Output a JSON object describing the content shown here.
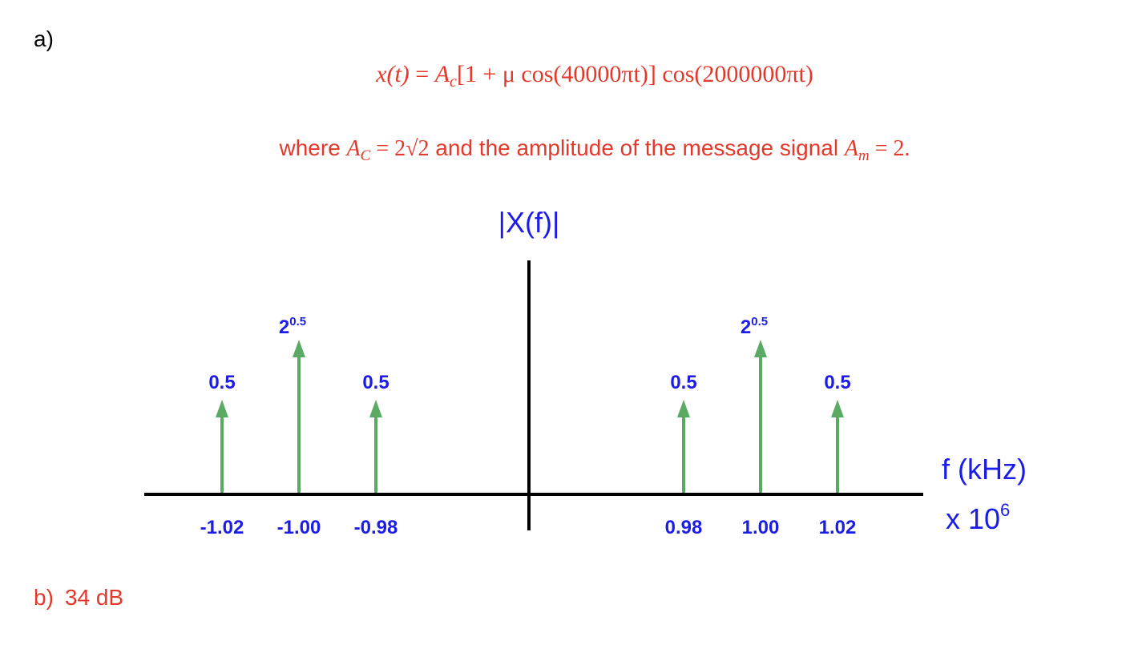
{
  "part_a": {
    "label": "a)",
    "formula": {
      "lhs": "x(t)",
      "equals": " = ",
      "carrier": "A",
      "carrier_sub": "c",
      "rest": "[1 + μ cos(40000πt)] cos(2000000πt)"
    },
    "where": {
      "lead": "where ",
      "carrier": "A",
      "carrier_sub": "C",
      "carrier_value": " = 2√2",
      "middle": "  and the amplitude of the message signal ",
      "message": "A",
      "message_sub": "m",
      "message_value": " = 2."
    },
    "spectrum": {
      "y_label": "|X(f)|",
      "x_label": "f (kHz)",
      "x_scale": "x 10",
      "x_scale_exponent": "6",
      "impulses": [
        {
          "frequency": "-1.02",
          "amplitude": "0.5"
        },
        {
          "frequency": "-1.00",
          "amplitude": {
            "base": "2",
            "exponent": "0.5"
          }
        },
        {
          "frequency": "-0.98",
          "amplitude": "0.5"
        },
        {
          "frequency": "0.98",
          "amplitude": "0.5"
        },
        {
          "frequency": "1.00",
          "amplitude": {
            "base": "2",
            "exponent": "0.5"
          }
        },
        {
          "frequency": "1.02",
          "amplitude": "0.5"
        }
      ]
    }
  },
  "part_b": {
    "label": "b)",
    "answer": "34 dB"
  }
}
